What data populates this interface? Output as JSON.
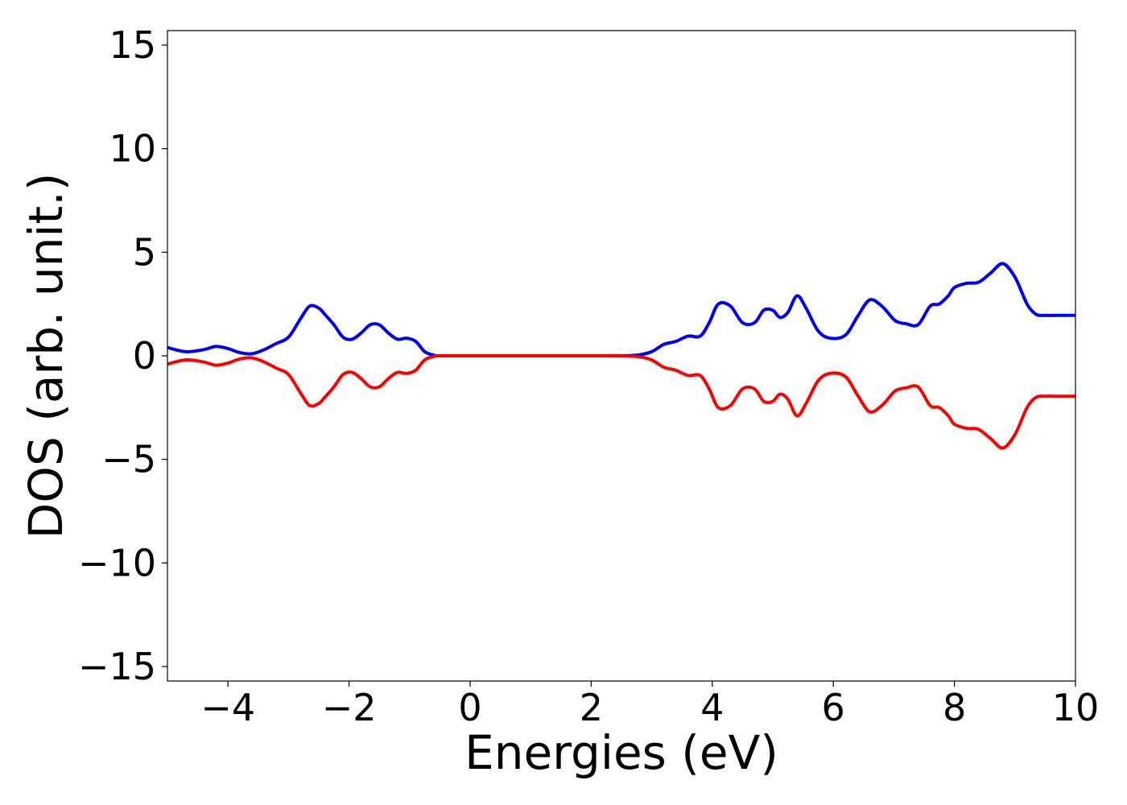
{
  "chart_data": {
    "type": "line",
    "title": "",
    "xlabel": "Energies (eV)",
    "ylabel": "DOS (arb. unit.)",
    "xlim": [
      -5,
      10
    ],
    "ylim": [
      -15.7,
      15.7
    ],
    "xticks": [
      -4,
      -2,
      0,
      2,
      4,
      6,
      8,
      10
    ],
    "xtick_labels": [
      "−4",
      "−2",
      "0",
      "2",
      "4",
      "6",
      "8",
      "10"
    ],
    "yticks": [
      15,
      10,
      5,
      0,
      -5,
      -10,
      -15
    ],
    "ytick_labels": [
      "15",
      "10",
      "5",
      "0",
      "−5",
      "−10",
      "−15"
    ],
    "grid": false,
    "legend": "none",
    "series": [
      {
        "color": "#0000ff",
        "x": [
          -5.0,
          -4.7,
          -4.4,
          -4.2,
          -4.0,
          -3.8,
          -3.6,
          -3.4,
          -3.2,
          -3.0,
          -2.8,
          -2.65,
          -2.5,
          -2.4,
          -2.25,
          -2.1,
          -1.95,
          -1.8,
          -1.65,
          -1.5,
          -1.35,
          -1.2,
          -1.05,
          -0.9,
          -0.75,
          -0.6,
          -0.5,
          0.0,
          1.0,
          2.0,
          2.5,
          2.8,
          3.0,
          3.2,
          3.4,
          3.6,
          3.8,
          3.95,
          4.1,
          4.3,
          4.5,
          4.7,
          4.85,
          5.0,
          5.12,
          5.25,
          5.4,
          5.55,
          5.75,
          5.95,
          6.2,
          6.4,
          6.6,
          6.8,
          7.0,
          7.1,
          7.2,
          7.4,
          7.6,
          7.75,
          7.9,
          8.0,
          8.2,
          8.4,
          8.6,
          8.8,
          9.0,
          9.2,
          9.35,
          9.5,
          9.65,
          9.8,
          10.0
        ],
        "values": [
          0.4,
          0.2,
          0.3,
          0.45,
          0.35,
          0.15,
          0.1,
          0.3,
          0.6,
          0.9,
          1.8,
          2.4,
          2.3,
          2.0,
          1.5,
          0.9,
          0.8,
          1.1,
          1.5,
          1.5,
          1.1,
          0.8,
          0.85,
          0.7,
          0.2,
          0.03,
          0.0,
          0.0,
          0.0,
          0.0,
          0.0,
          0.05,
          0.2,
          0.55,
          0.7,
          0.95,
          0.95,
          1.6,
          2.5,
          2.4,
          1.6,
          1.6,
          2.2,
          2.2,
          1.85,
          2.1,
          2.9,
          2.3,
          1.2,
          0.85,
          1.0,
          1.9,
          2.7,
          2.4,
          1.75,
          1.6,
          1.55,
          1.5,
          2.4,
          2.5,
          2.9,
          3.3,
          3.5,
          3.55,
          4.0,
          4.45,
          3.8,
          2.5,
          2.0,
          1.95,
          1.95,
          1.95,
          1.95
        ]
      },
      {
        "color": "#ff0000",
        "x": [
          -5.0,
          -4.7,
          -4.4,
          -4.2,
          -4.0,
          -3.8,
          -3.6,
          -3.4,
          -3.2,
          -3.0,
          -2.8,
          -2.65,
          -2.5,
          -2.4,
          -2.25,
          -2.1,
          -1.95,
          -1.8,
          -1.65,
          -1.5,
          -1.35,
          -1.2,
          -1.05,
          -0.9,
          -0.75,
          -0.6,
          -0.5,
          0.0,
          1.0,
          2.0,
          2.5,
          2.8,
          3.0,
          3.2,
          3.4,
          3.6,
          3.8,
          3.95,
          4.1,
          4.3,
          4.5,
          4.7,
          4.85,
          5.0,
          5.12,
          5.25,
          5.4,
          5.55,
          5.75,
          5.95,
          6.2,
          6.4,
          6.6,
          6.8,
          7.0,
          7.1,
          7.2,
          7.4,
          7.6,
          7.75,
          7.9,
          8.0,
          8.2,
          8.4,
          8.6,
          8.8,
          9.0,
          9.2,
          9.35,
          9.5,
          9.65,
          9.8,
          10.0
        ],
        "values": [
          -0.4,
          -0.2,
          -0.3,
          -0.45,
          -0.35,
          -0.15,
          -0.1,
          -0.3,
          -0.6,
          -0.9,
          -1.8,
          -2.4,
          -2.3,
          -2.0,
          -1.5,
          -0.9,
          -0.8,
          -1.1,
          -1.5,
          -1.5,
          -1.1,
          -0.8,
          -0.85,
          -0.7,
          -0.2,
          -0.03,
          0.0,
          0.0,
          0.0,
          0.0,
          0.0,
          -0.05,
          -0.2,
          -0.55,
          -0.7,
          -0.95,
          -0.95,
          -1.6,
          -2.5,
          -2.4,
          -1.6,
          -1.6,
          -2.2,
          -2.2,
          -1.85,
          -2.1,
          -2.9,
          -2.3,
          -1.2,
          -0.85,
          -1.0,
          -1.9,
          -2.7,
          -2.4,
          -1.75,
          -1.6,
          -1.55,
          -1.5,
          -2.4,
          -2.5,
          -2.9,
          -3.3,
          -3.5,
          -3.55,
          -4.0,
          -4.45,
          -3.8,
          -2.5,
          -2.0,
          -1.95,
          -1.95,
          -1.95,
          -1.95
        ]
      }
    ]
  }
}
